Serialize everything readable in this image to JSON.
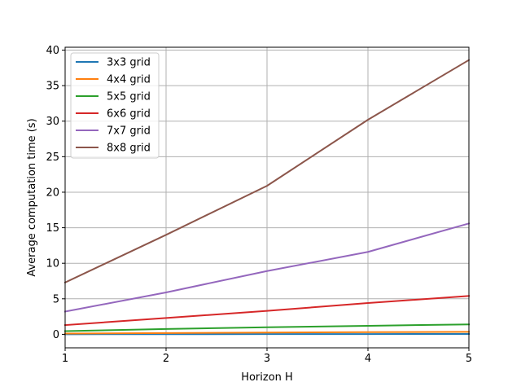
{
  "chart_data": {
    "type": "line",
    "title": "",
    "xlabel": "Horizon H",
    "ylabel": "Average computation time (s)",
    "x": [
      1,
      2,
      3,
      4,
      5
    ],
    "xlim": [
      1,
      5
    ],
    "ylim": [
      -1.9,
      40.4
    ],
    "xticks": [
      1,
      2,
      3,
      4,
      5
    ],
    "yticks": [
      0,
      5,
      10,
      15,
      20,
      25,
      30,
      35,
      40
    ],
    "grid": true,
    "legend_position": "upper-left",
    "series": [
      {
        "name": "3x3 grid",
        "color": "#1f77b4",
        "values": [
          0.01,
          0.02,
          0.03,
          0.04,
          0.05
        ]
      },
      {
        "name": "4x4 grid",
        "color": "#ff7f0e",
        "values": [
          0.1,
          0.18,
          0.25,
          0.3,
          0.35
        ]
      },
      {
        "name": "5x5 grid",
        "color": "#2ca02c",
        "values": [
          0.45,
          0.75,
          1.0,
          1.2,
          1.4
        ]
      },
      {
        "name": "6x6 grid",
        "color": "#d62728",
        "values": [
          1.3,
          2.3,
          3.3,
          4.4,
          5.4
        ]
      },
      {
        "name": "7x7 grid",
        "color": "#9467bd",
        "values": [
          3.2,
          5.9,
          8.9,
          11.6,
          15.6
        ]
      },
      {
        "name": "8x8 grid",
        "color": "#8c564b",
        "values": [
          7.3,
          14.0,
          20.9,
          30.2,
          38.6
        ]
      }
    ]
  }
}
